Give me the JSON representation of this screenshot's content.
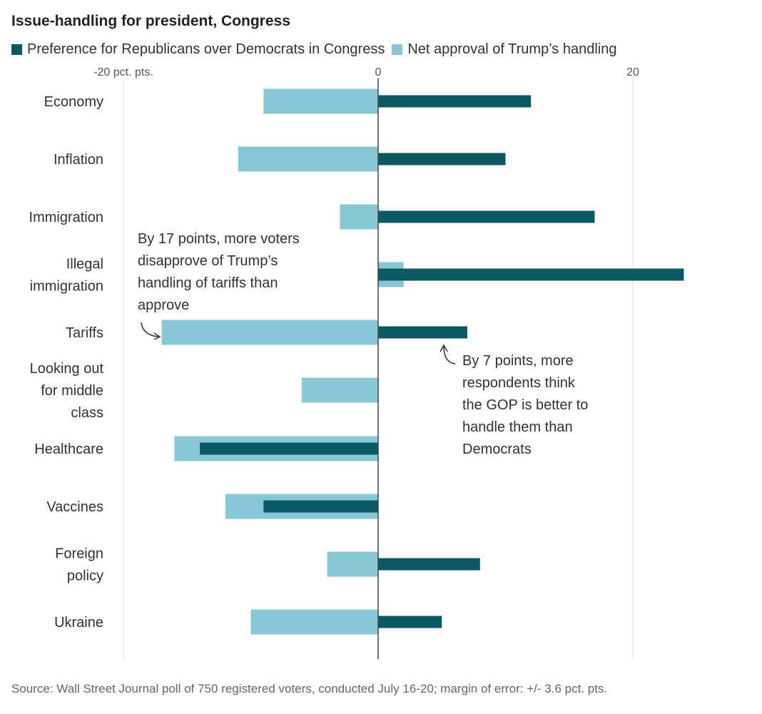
{
  "colors": {
    "dark": "#0b5a63",
    "light": "#88c8d6",
    "grid": "#dddddd",
    "axis": "#444444"
  },
  "chart_data": {
    "type": "bar",
    "title": "Issue-handling for president, Congress",
    "orientation": "horizontal",
    "xlim": [
      -20,
      24
    ],
    "ticks": [
      {
        "value": -20,
        "label": "-20 pct. pts."
      },
      {
        "value": 0,
        "label": "0"
      },
      {
        "value": 20,
        "label": "20"
      }
    ],
    "categories": [
      [
        "Economy"
      ],
      [
        "Inflation"
      ],
      [
        "Immigration"
      ],
      [
        "Illegal",
        "immigration"
      ],
      [
        "Tariffs"
      ],
      [
        "Looking out",
        "for middle",
        "class"
      ],
      [
        "Healthcare"
      ],
      [
        "Vaccines"
      ],
      [
        "Foreign",
        "policy"
      ],
      [
        "Ukraine"
      ]
    ],
    "series": [
      {
        "name": "Net approval of Trump’s handling",
        "color": "light",
        "values": [
          -9,
          -11,
          -3,
          2,
          -17,
          -6,
          -16,
          -12,
          -4,
          -10
        ]
      },
      {
        "name": "Preference for Republicans over Democrats in Congress",
        "color": "dark",
        "values": [
          12,
          10,
          17,
          24,
          7,
          0,
          -14,
          -9,
          8,
          5
        ]
      }
    ],
    "legend": "top-left",
    "grid": true
  },
  "annotations": {
    "tariffs_left": [
      "By 17 points, more voters",
      "disapprove of Trump’s",
      "handling of tariffs than",
      "approve"
    ],
    "tariffs_right": [
      "By 7 points, more",
      "respondents think",
      "the GOP is better to",
      "handle them than",
      "Democrats"
    ]
  },
  "source": "Source: Wall Street Journal poll of 750 registered voters, conducted July 16-20; margin of error: +/- 3.6 pct. pts."
}
